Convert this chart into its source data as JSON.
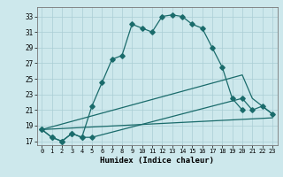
{
  "xlabel": "Humidex (Indice chaleur)",
  "xlim": [
    -0.5,
    23.5
  ],
  "ylim": [
    16.5,
    34.2
  ],
  "xticks": [
    0,
    1,
    2,
    3,
    4,
    5,
    6,
    7,
    8,
    9,
    10,
    11,
    12,
    13,
    14,
    15,
    16,
    17,
    18,
    19,
    20,
    21,
    22,
    23
  ],
  "yticks": [
    17,
    19,
    21,
    23,
    25,
    27,
    29,
    31,
    33
  ],
  "bg_color": "#cde8ec",
  "grid_color": "#aacdd4",
  "line_color": "#1a6b6b",
  "series1_x": [
    0,
    1,
    2,
    3,
    4,
    5,
    6,
    7,
    8,
    9,
    10,
    11,
    12,
    13,
    14,
    15,
    16,
    17,
    18,
    19,
    20
  ],
  "series1_y": [
    18.5,
    17.5,
    17.0,
    18.0,
    17.5,
    21.5,
    24.5,
    27.5,
    28.0,
    32.0,
    31.5,
    31.0,
    33.0,
    33.2,
    33.0,
    32.0,
    31.5,
    29.0,
    26.5,
    22.5,
    21.0
  ],
  "series2_x": [
    0,
    1,
    2,
    3,
    4,
    5,
    20,
    21,
    22,
    23
  ],
  "series2_y": [
    18.5,
    17.5,
    17.0,
    18.0,
    17.5,
    17.5,
    22.5,
    21.0,
    21.5,
    20.5
  ],
  "series3_x": [
    0,
    20,
    21,
    22,
    23
  ],
  "series3_y": [
    18.5,
    25.5,
    22.5,
    21.5,
    20.5
  ],
  "series4_x": [
    0,
    23
  ],
  "series4_y": [
    18.5,
    20.0
  ]
}
